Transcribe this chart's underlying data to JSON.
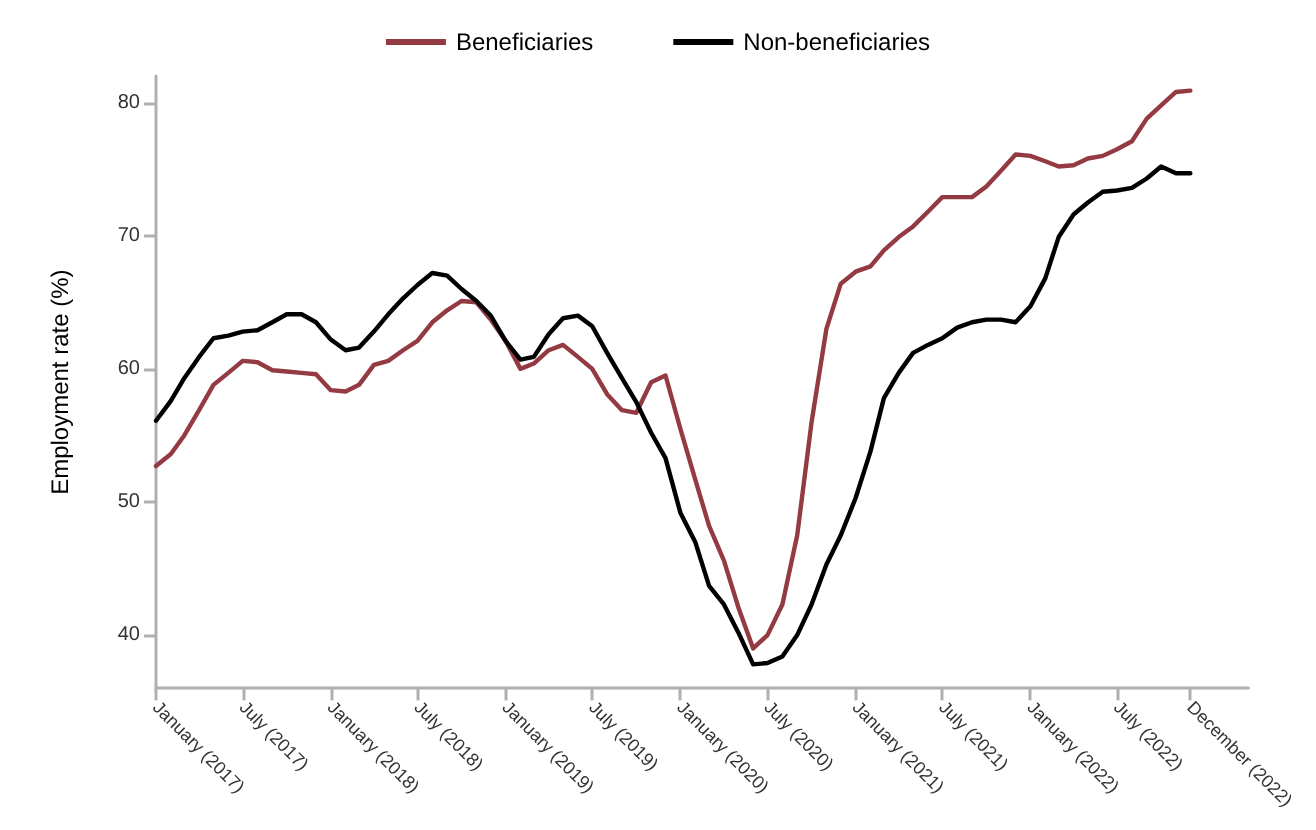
{
  "chart_data": {
    "type": "line",
    "ylabel": "Employment rate (%)",
    "x": [
      "2017-01",
      "2017-02",
      "2017-03",
      "2017-04",
      "2017-05",
      "2017-06",
      "2017-07",
      "2017-08",
      "2017-09",
      "2017-10",
      "2017-11",
      "2017-12",
      "2018-01",
      "2018-02",
      "2018-03",
      "2018-04",
      "2018-05",
      "2018-06",
      "2018-07",
      "2018-08",
      "2018-09",
      "2018-10",
      "2018-11",
      "2018-12",
      "2019-01",
      "2019-02",
      "2019-03",
      "2019-04",
      "2019-05",
      "2019-06",
      "2019-07",
      "2019-08",
      "2019-09",
      "2019-10",
      "2019-11",
      "2019-12",
      "2020-01",
      "2020-02",
      "2020-03",
      "2020-04",
      "2020-05",
      "2020-06",
      "2020-07",
      "2020-08",
      "2020-09",
      "2020-10",
      "2020-11",
      "2020-12",
      "2021-01",
      "2021-02",
      "2021-03",
      "2021-04",
      "2021-05",
      "2021-06",
      "2021-07",
      "2021-08",
      "2021-09",
      "2021-10",
      "2021-11",
      "2021-12",
      "2022-01",
      "2022-02",
      "2022-03",
      "2022-04",
      "2022-05",
      "2022-06",
      "2022-07",
      "2022-08",
      "2022-09",
      "2022-10",
      "2022-11",
      "2022-12"
    ],
    "series": [
      {
        "name": "Beneficiaries",
        "color": "#943a43",
        "values": [
          52.7,
          53.6,
          55.0,
          56.9,
          58.8,
          59.7,
          60.6,
          60.5,
          59.9,
          59.8,
          59.7,
          59.6,
          58.4,
          58.3,
          58.8,
          60.3,
          60.6,
          61.4,
          62.1,
          63.5,
          64.4,
          65.1,
          65.0,
          63.7,
          62.1,
          60.0,
          60.4,
          61.4,
          61.8,
          60.9,
          60.0,
          58.1,
          56.9,
          56.7,
          59.0,
          59.5,
          55.5,
          51.7,
          48.2,
          45.6,
          42.1,
          39.0,
          40.0,
          42.3,
          47.5,
          56.0,
          63.0,
          66.4,
          67.3,
          67.7,
          68.9,
          69.9,
          70.7,
          71.8,
          72.9,
          72.9,
          72.9,
          73.7,
          74.9,
          76.1,
          76.0,
          75.6,
          75.2,
          75.3,
          75.8,
          76.0,
          76.5,
          77.1,
          78.8,
          79.8,
          80.8,
          80.9
        ]
      },
      {
        "name": "Non-beneficiaries",
        "color": "#000000",
        "values": [
          56.1,
          57.6,
          59.3,
          60.9,
          62.3,
          62.5,
          62.8,
          62.9,
          63.5,
          64.1,
          64.1,
          63.5,
          62.2,
          61.4,
          61.6,
          62.8,
          64.1,
          65.3,
          66.3,
          67.2,
          67.0,
          66.0,
          65.1,
          64.0,
          62.1,
          60.7,
          60.9,
          62.6,
          63.8,
          64.0,
          63.2,
          61.2,
          59.3,
          57.5,
          55.2,
          53.3,
          49.2,
          47.0,
          43.7,
          42.3,
          40.2,
          37.8,
          37.9,
          38.4,
          40.0,
          42.3,
          45.3,
          47.5,
          50.3,
          53.8,
          57.8,
          59.7,
          61.2,
          61.8,
          62.3,
          63.1,
          63.5,
          63.7,
          63.7,
          63.5,
          64.7,
          66.8,
          69.9,
          71.6,
          72.5,
          73.3,
          73.4,
          73.6,
          74.3,
          75.2,
          74.7,
          74.7
        ]
      }
    ],
    "xlim": [
      "2017-01",
      "2023-04"
    ],
    "xticks": [
      {
        "value": "2017-01",
        "label": "January (2017)"
      },
      {
        "value": "2017-07",
        "label": "July (2017)"
      },
      {
        "value": "2018-01",
        "label": "January (2018)"
      },
      {
        "value": "2018-07",
        "label": "July (2018)"
      },
      {
        "value": "2019-01",
        "label": "January (2019)"
      },
      {
        "value": "2019-07",
        "label": "July (2019)"
      },
      {
        "value": "2020-01",
        "label": "January (2020)"
      },
      {
        "value": "2020-07",
        "label": "July (2020)"
      },
      {
        "value": "2021-01",
        "label": "January (2021)"
      },
      {
        "value": "2021-07",
        "label": "July (2021)"
      },
      {
        "value": "2022-01",
        "label": "January (2022)"
      },
      {
        "value": "2022-07",
        "label": "July (2022)"
      },
      {
        "value": "2022-12",
        "label": "December (2022)"
      }
    ],
    "ylim": [
      36,
      82
    ],
    "yticks": [
      40,
      50,
      60,
      70,
      80
    ],
    "grid": false,
    "legend": "top",
    "marker": "none",
    "line_style": "solid"
  }
}
